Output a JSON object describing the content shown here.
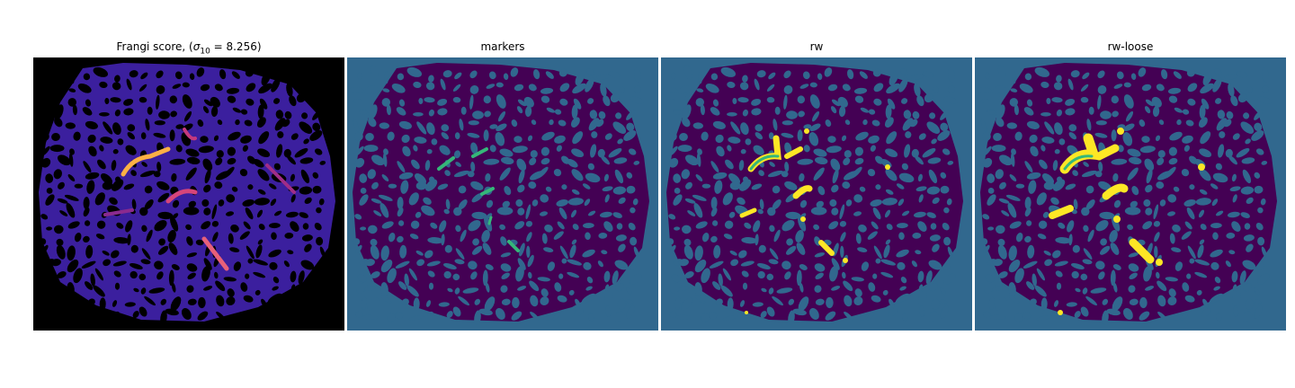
{
  "figure": {
    "panels": [
      {
        "id": "frangi",
        "title_prefix": "Frangi score, (",
        "title_sigma": "σ",
        "title_sub": "10",
        "title_suffix": " = 8.256)",
        "colormap": "magma"
      },
      {
        "id": "markers",
        "title": "markers",
        "colormap": "viridis"
      },
      {
        "id": "rw",
        "title": "rw",
        "colormap": "viridis"
      },
      {
        "id": "rw-loose",
        "title": "rw-loose",
        "colormap": "viridis"
      }
    ],
    "colors": {
      "background_label": "#31688e",
      "tissue_label": "#440154",
      "vessel_marker": "#35b779",
      "vessel_rw": "#fde725",
      "frangi_bg": "#000000",
      "frangi_tissue": "#3b1f9e",
      "frangi_high": "#fcb045",
      "frangi_mid": "#d6457a"
    }
  }
}
